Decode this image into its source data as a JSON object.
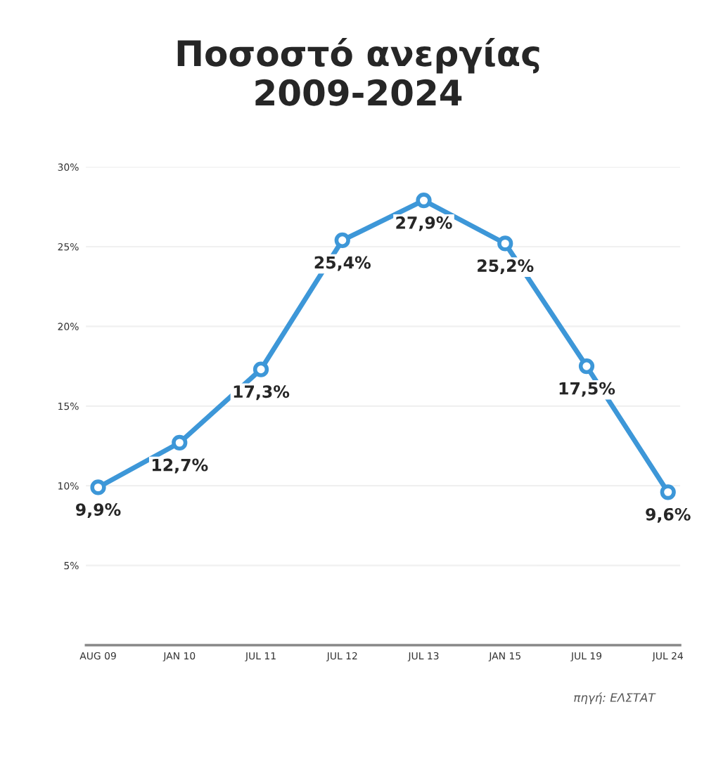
{
  "chart_data": {
    "type": "line",
    "title": "Ποσοστό ανεργίας\n2009-2024",
    "categories": [
      "AUG 09",
      "JAN 10",
      "JUL 11",
      "JUL 12",
      "JUL 13",
      "JAN 15",
      "JUL 19",
      "JUL 24"
    ],
    "series": [
      {
        "color": "#3d97d8",
        "values": [
          9.9,
          12.7,
          17.3,
          25.4,
          27.9,
          25.2,
          17.5,
          9.6
        ],
        "value_labels": [
          "9,9%",
          "12,7%",
          "17,3%",
          "25,4%",
          "27,9%",
          "25,2%",
          "17,5%",
          "9,6%"
        ]
      }
    ],
    "ylim": [
      0,
      30
    ],
    "yticks": [
      {
        "value": 5,
        "label": "5%"
      },
      {
        "value": 10,
        "label": "10%"
      },
      {
        "value": 15,
        "label": "15%"
      },
      {
        "value": 20,
        "label": "20%"
      },
      {
        "value": 25,
        "label": "25%"
      },
      {
        "value": 30,
        "label": "30%"
      }
    ],
    "grid": "y",
    "marker": "circle",
    "line_style": "solid",
    "annotations": [
      "πηγή: ΕΛΣΤΑΤ"
    ]
  }
}
